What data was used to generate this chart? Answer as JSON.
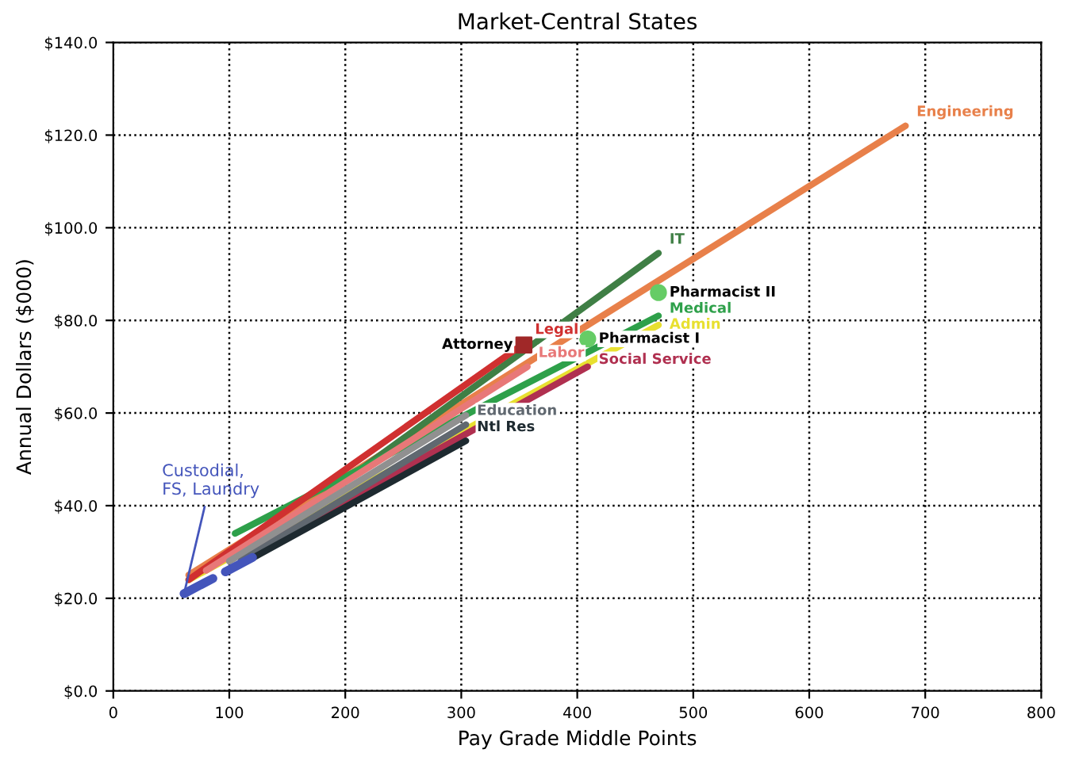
{
  "chart_data": {
    "type": "line",
    "title": "Market-Central States",
    "xlabel": "Pay Grade Middle Points",
    "ylabel": "Annual Dollars ($000)",
    "xlim": [
      0,
      800
    ],
    "xticks": [
      0,
      100,
      200,
      300,
      400,
      500,
      600,
      700,
      800
    ],
    "ylim": [
      0,
      140
    ],
    "yticks": [
      {
        "value": 0,
        "label": "$0.0"
      },
      {
        "value": 20,
        "label": "$20.0"
      },
      {
        "value": 40,
        "label": "$40.0"
      },
      {
        "value": 60,
        "label": "$60.0"
      },
      {
        "value": 80,
        "label": "$80.0"
      },
      {
        "value": 100,
        "label": "$100.0"
      },
      {
        "value": 120,
        "label": "$120.0"
      },
      {
        "value": 140,
        "label": "$140.0"
      }
    ],
    "grid": true,
    "legend": false,
    "marker": "none",
    "line_style": "solid",
    "series": [
      {
        "name": "Engineering",
        "color": "#e8804a",
        "x": [
          65,
          683
        ],
        "values": [
          25,
          122
        ]
      },
      {
        "name": "IT",
        "color": "#3f7f45",
        "x": [
          115,
          470
        ],
        "values": [
          30,
          94.5
        ]
      },
      {
        "name": "Medical",
        "color": "#2ea04a",
        "x": [
          105,
          470
        ],
        "values": [
          34,
          81
        ]
      },
      {
        "name": "Admin",
        "color": "#e8e030",
        "x": [
          65,
          470
        ],
        "values": [
          24,
          79
        ]
      },
      {
        "name": "Legal",
        "color": "#d03030",
        "x": [
          65,
          354
        ],
        "values": [
          24,
          75
        ]
      },
      {
        "name": "Labor",
        "color": "#e87878",
        "x": [
          80,
          357
        ],
        "values": [
          26,
          70
        ]
      },
      {
        "name": "Social Service",
        "color": "#b03050",
        "x": [
          120,
          409
        ],
        "values": [
          30,
          70
        ]
      },
      {
        "color": "#909090",
        "x": [
          100,
          304
        ],
        "values": [
          28,
          59.5
        ]
      },
      {
        "name": "Education",
        "color": "#606870",
        "x": [
          110,
          304
        ],
        "values": [
          28,
          57.5
        ]
      },
      {
        "name": "Ntl Res",
        "color": "#1e2a30",
        "x": [
          115,
          304
        ],
        "values": [
          28,
          54
        ]
      },
      {
        "color": "#4455bb",
        "x": [
          61,
          120
        ],
        "values": [
          21,
          28.8
        ],
        "line_style": "dashed"
      },
      {
        "name": "Pharmacist II",
        "type": "scatter",
        "marker": "circle",
        "color": "#66cc66",
        "x": [
          470
        ],
        "values": [
          86
        ]
      },
      {
        "name": "Pharmacist I",
        "type": "scatter",
        "marker": "circle",
        "color": "#66cc66",
        "x": [
          409
        ],
        "values": [
          76
        ]
      },
      {
        "name": "Attorney",
        "type": "scatter",
        "marker": "square",
        "color": "#a02828",
        "x": [
          354
        ],
        "values": [
          74.7
        ]
      }
    ],
    "annotations": [
      {
        "text": "Custodial,\nFS, Laundry",
        "x": 61,
        "y": 21
      }
    ]
  }
}
